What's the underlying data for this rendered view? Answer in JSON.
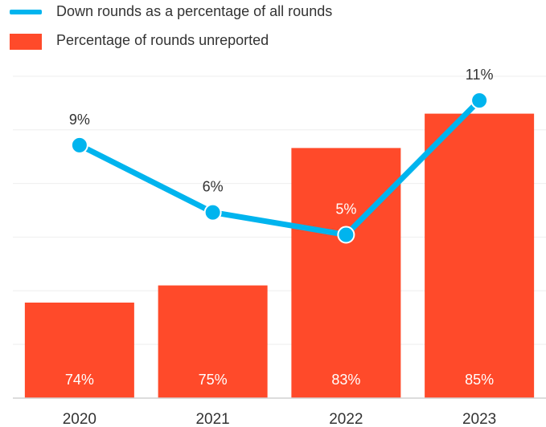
{
  "chart_data": {
    "type": "bar+line",
    "categories": [
      "2020",
      "2021",
      "2022",
      "2023"
    ],
    "series": [
      {
        "name": "Percentage of rounds unreported",
        "type": "bar",
        "values": [
          74,
          75,
          83,
          85
        ],
        "labels": [
          "74%",
          "75%",
          "83%",
          "85%"
        ],
        "color": "#FF4A2A"
      },
      {
        "name": "Down rounds as a percentage of all rounds",
        "type": "line",
        "values": [
          9,
          6,
          5,
          11
        ],
        "labels": [
          "9%",
          "6%",
          "5%",
          "11%"
        ],
        "color": "#00B4EE"
      }
    ],
    "grid": true,
    "legend": "top-left",
    "colors": {
      "bar": "#FF4A2A",
      "line": "#00B4EE",
      "grid": "#EEEEEE",
      "text": "#333333"
    }
  }
}
